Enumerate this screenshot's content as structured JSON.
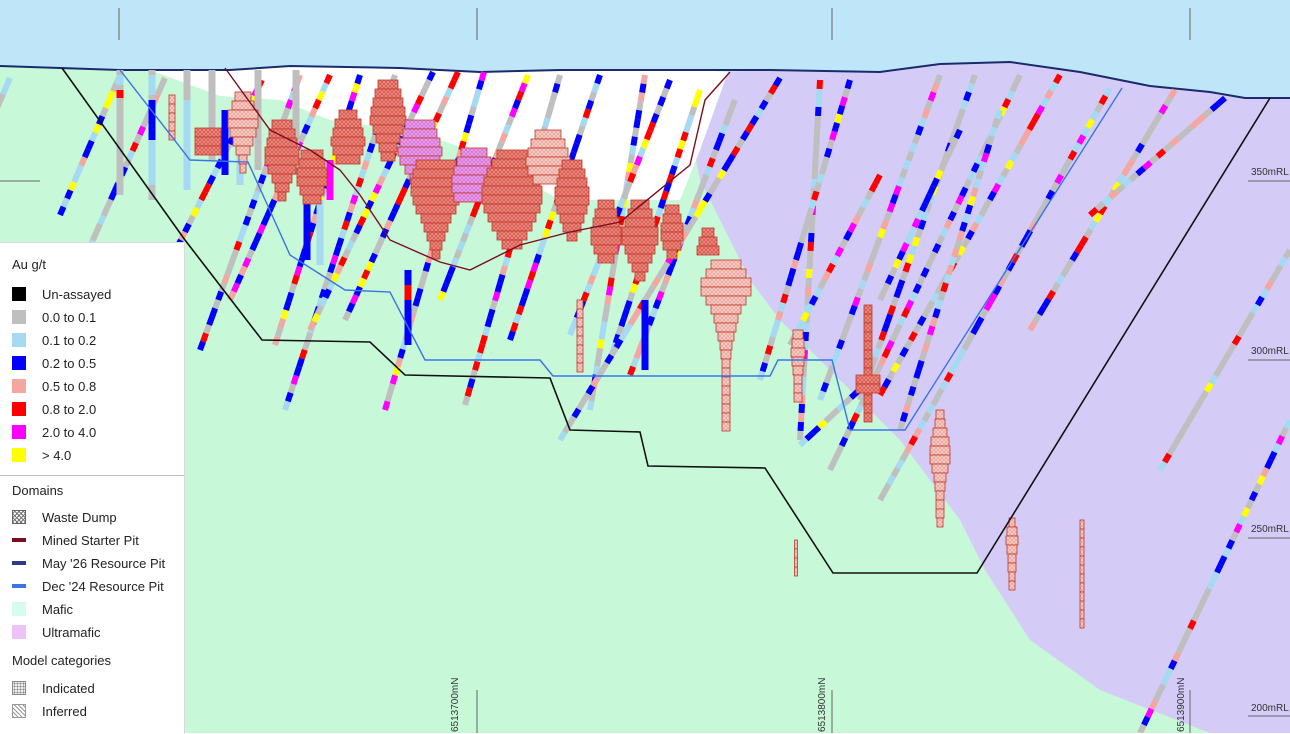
{
  "section": {
    "rl_labels": [
      "350mRL",
      "300mRL",
      "250mRL",
      "200mRL"
    ],
    "northings": [
      "6513700mN",
      "6513800mN",
      "6513900mN"
    ]
  },
  "legend": {
    "au_title": "Au g/t",
    "grades": [
      {
        "label": "Un-assayed",
        "color": "#000000"
      },
      {
        "label": "0.0 to 0.1",
        "color": "#bfbfbf"
      },
      {
        "label": "0.1 to 0.2",
        "color": "#a6d9f2"
      },
      {
        "label": "0.2 to 0.5",
        "color": "#0000ff"
      },
      {
        "label": "0.5 to 0.8",
        "color": "#f4a6a0"
      },
      {
        "label": "0.8 to 2.0",
        "color": "#ff0000"
      },
      {
        "label": "2.0 to 4.0",
        "color": "#ff00ff"
      },
      {
        "label": "> 4.0",
        "color": "#ffff00"
      }
    ],
    "domains_title": "Domains",
    "domains": [
      {
        "label": "Waste Dump",
        "kind": "hatch",
        "color": "#666666"
      },
      {
        "label": "Mined Starter Pit",
        "kind": "line",
        "color": "#7b0d1e"
      },
      {
        "label": "May '26 Resource Pit",
        "kind": "line",
        "color": "#2e3a87"
      },
      {
        "label": "Dec '24 Resource Pit",
        "kind": "line",
        "color": "#3b74e8"
      },
      {
        "label": "Mafic",
        "kind": "fill",
        "color": "#d6fbef"
      },
      {
        "label": "Ultramafic",
        "kind": "fill",
        "color": "#ecc4f5"
      }
    ],
    "categories_title": "Model categories",
    "categories": [
      {
        "label": "Indicated",
        "kind": "dots"
      },
      {
        "label": "Inferred",
        "kind": "diag"
      }
    ]
  },
  "colors": {
    "sky": "#bfe6f8",
    "mafic_host": "#c7f8d8",
    "ultramafic_host": "#d4ccf7",
    "waste_dump": "#ffffff",
    "starter_pit": "#7b0d1e",
    "may26_pit": "#111111",
    "dec24_pit": "#3b74e8",
    "ore_block_fill": "#ee8a80",
    "ore_block_edge": "#c0392b",
    "ultramafic_ore": "#e8a0ea"
  }
}
